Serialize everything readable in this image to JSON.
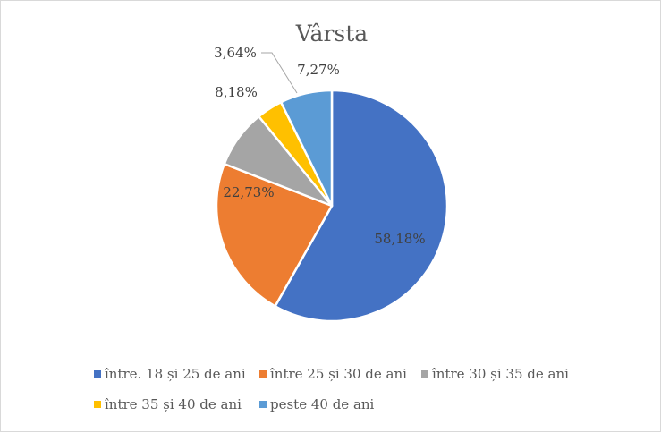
{
  "chart_data": {
    "type": "pie",
    "title": "Vârsta",
    "categories": [
      "între. 18 și 25 de ani",
      "între 25 și 30 de ani",
      "între 30 și 35 de ani",
      "între 35 și 40 de ani",
      "peste 40 de ani"
    ],
    "values": [
      58.18,
      22.73,
      8.18,
      3.64,
      7.27
    ],
    "data_labels": [
      "58,18%",
      "22,73%",
      "8,18%",
      "3,64%",
      "7,27%"
    ],
    "colors": [
      "#4472C4",
      "#ED7D31",
      "#A5A5A5",
      "#FFC000",
      "#5B9BD5"
    ],
    "legend": "bottom",
    "start_angle": "12 o'clock",
    "direction": "clockwise"
  }
}
